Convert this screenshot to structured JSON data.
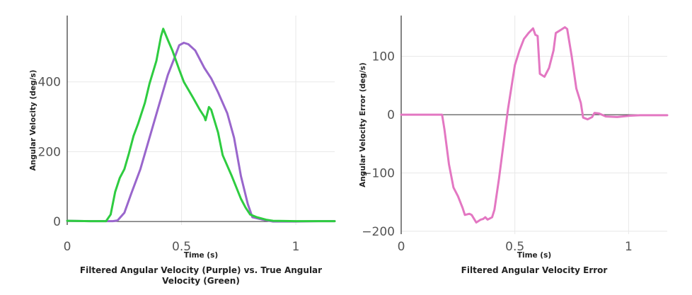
{
  "chart_data": [
    {
      "type": "line",
      "title_lines": [
        "Filtered Angular Velocity (Purple) vs. True Angular",
        "Velocity (Green)"
      ],
      "xlabel": "Time (s)",
      "ylabel": "Angular Velocity (deg/s)",
      "xlim": [
        0,
        1.17
      ],
      "ylim": [
        -10,
        590
      ],
      "xticks": [
        0,
        0.5,
        1
      ],
      "xtick_labels": [
        "0",
        "0.5",
        "1"
      ],
      "yticks": [
        0,
        200,
        400
      ],
      "ytick_labels": [
        "0",
        "200",
        "400"
      ],
      "grid": true,
      "series": [
        {
          "color": "#9966cc",
          "points": [
            [
              0,
              2
            ],
            [
              0.1,
              1
            ],
            [
              0.2,
              1
            ],
            [
              0.22,
              3
            ],
            [
              0.25,
              25
            ],
            [
              0.28,
              80
            ],
            [
              0.32,
              150
            ],
            [
              0.36,
              240
            ],
            [
              0.4,
              330
            ],
            [
              0.44,
              420
            ],
            [
              0.47,
              470
            ],
            [
              0.49,
              505
            ],
            [
              0.51,
              512
            ],
            [
              0.53,
              508
            ],
            [
              0.56,
              490
            ],
            [
              0.6,
              440
            ],
            [
              0.63,
              410
            ],
            [
              0.66,
              370
            ],
            [
              0.7,
              310
            ],
            [
              0.73,
              240
            ],
            [
              0.76,
              130
            ],
            [
              0.79,
              50
            ],
            [
              0.81,
              12
            ],
            [
              0.85,
              6
            ],
            [
              0.9,
              0
            ],
            [
              1.0,
              0
            ],
            [
              1.1,
              1
            ],
            [
              1.17,
              1
            ]
          ]
        },
        {
          "color": "#2ecc40",
          "points": [
            [
              0,
              2
            ],
            [
              0.1,
              1
            ],
            [
              0.17,
              1
            ],
            [
              0.19,
              20
            ],
            [
              0.21,
              85
            ],
            [
              0.23,
              125
            ],
            [
              0.25,
              150
            ],
            [
              0.27,
              195
            ],
            [
              0.29,
              245
            ],
            [
              0.31,
              280
            ],
            [
              0.34,
              340
            ],
            [
              0.36,
              395
            ],
            [
              0.39,
              460
            ],
            [
              0.41,
              530
            ],
            [
              0.42,
              552
            ],
            [
              0.44,
              520
            ],
            [
              0.46,
              490
            ],
            [
              0.49,
              435
            ],
            [
              0.51,
              400
            ],
            [
              0.55,
              355
            ],
            [
              0.58,
              320
            ],
            [
              0.6,
              300
            ],
            [
              0.605,
              290
            ],
            [
              0.62,
              328
            ],
            [
              0.63,
              320
            ],
            [
              0.66,
              255
            ],
            [
              0.68,
              190
            ],
            [
              0.72,
              130
            ],
            [
              0.76,
              65
            ],
            [
              0.78,
              40
            ],
            [
              0.8,
              20
            ],
            [
              0.83,
              12
            ],
            [
              0.87,
              5
            ],
            [
              0.9,
              2
            ],
            [
              1.0,
              1
            ],
            [
              1.17,
              1
            ]
          ]
        }
      ]
    },
    {
      "type": "line",
      "title_lines": [
        "Filtered Angular Velocity Error"
      ],
      "xlabel": "Time (s)",
      "ylabel": "Angular Velocity Error (deg/s)",
      "xlim": [
        0,
        1.17
      ],
      "ylim": [
        -205,
        170
      ],
      "xticks": [
        0,
        0.5,
        1
      ],
      "xtick_labels": [
        "0",
        "0.5",
        "1"
      ],
      "yticks": [
        -200,
        -100,
        0,
        100
      ],
      "ytick_labels": [
        "−200",
        "−100",
        "0",
        "100"
      ],
      "grid": true,
      "series": [
        {
          "color": "#e377c2",
          "points": [
            [
              0,
              0
            ],
            [
              0.1,
              0
            ],
            [
              0.18,
              0
            ],
            [
              0.19,
              -25
            ],
            [
              0.21,
              -85
            ],
            [
              0.23,
              -125
            ],
            [
              0.25,
              -140
            ],
            [
              0.27,
              -160
            ],
            [
              0.28,
              -172
            ],
            [
              0.3,
              -170
            ],
            [
              0.31,
              -172
            ],
            [
              0.33,
              -185
            ],
            [
              0.35,
              -180
            ],
            [
              0.36,
              -179
            ],
            [
              0.37,
              -176
            ],
            [
              0.38,
              -180
            ],
            [
              0.4,
              -176
            ],
            [
              0.41,
              -163
            ],
            [
              0.43,
              -110
            ],
            [
              0.45,
              -50
            ],
            [
              0.47,
              10
            ],
            [
              0.5,
              85
            ],
            [
              0.52,
              110
            ],
            [
              0.54,
              130
            ],
            [
              0.56,
              140
            ],
            [
              0.58,
              148
            ],
            [
              0.59,
              137
            ],
            [
              0.6,
              135
            ],
            [
              0.61,
              70
            ],
            [
              0.63,
              65
            ],
            [
              0.65,
              80
            ],
            [
              0.67,
              110
            ],
            [
              0.68,
              140
            ],
            [
              0.7,
              145
            ],
            [
              0.72,
              150
            ],
            [
              0.73,
              147
            ],
            [
              0.75,
              100
            ],
            [
              0.77,
              45
            ],
            [
              0.79,
              20
            ],
            [
              0.8,
              -5
            ],
            [
              0.82,
              -8
            ],
            [
              0.84,
              -4
            ],
            [
              0.85,
              3
            ],
            [
              0.87,
              2
            ],
            [
              0.9,
              -3
            ],
            [
              0.95,
              -4
            ],
            [
              1.0,
              -2
            ],
            [
              1.05,
              -1
            ],
            [
              1.1,
              -1
            ],
            [
              1.17,
              -1
            ]
          ]
        }
      ]
    }
  ]
}
